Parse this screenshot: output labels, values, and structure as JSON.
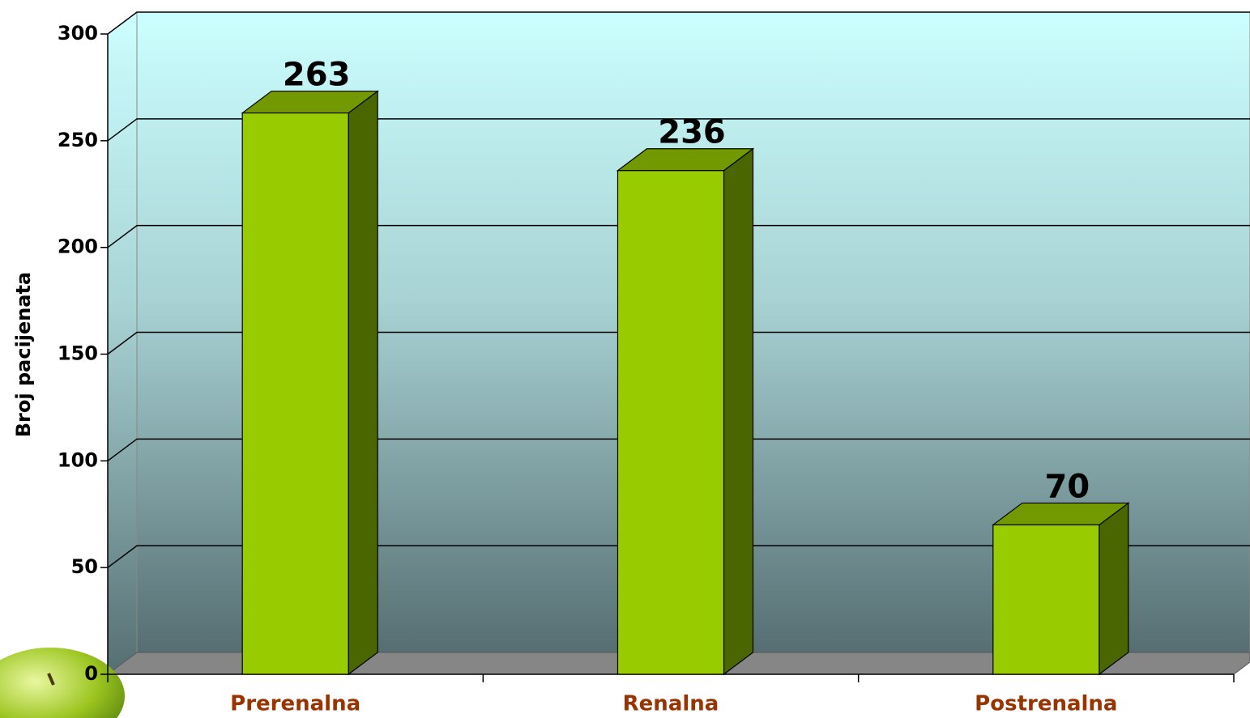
{
  "chart_data": {
    "type": "bar",
    "y_label": "Broj pacijenata",
    "categories": [
      "Prerenalna",
      "Renalna",
      "Postrenalna"
    ],
    "values": [
      263,
      236,
      70
    ],
    "color": "#99cc00",
    "ylim": [
      0,
      300
    ],
    "yticks": [
      0,
      50,
      100,
      150,
      200,
      250,
      300
    ],
    "grid": true
  }
}
